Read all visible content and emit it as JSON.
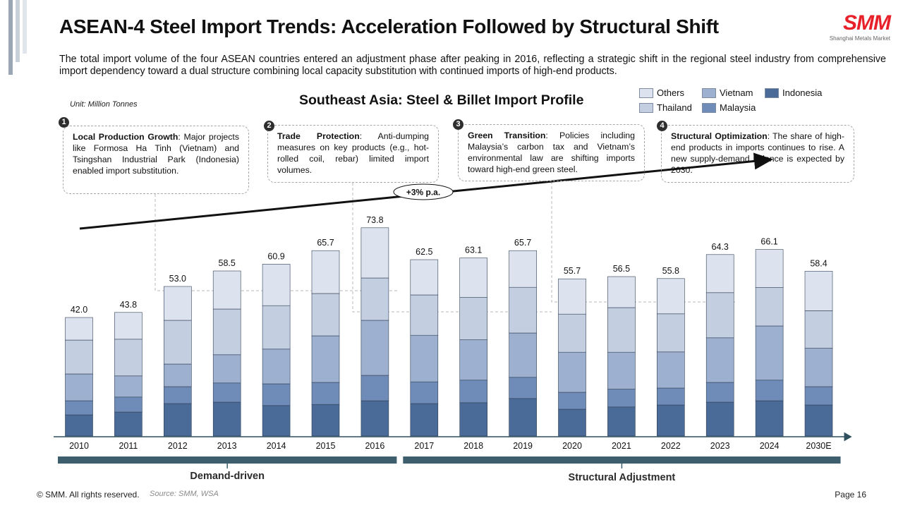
{
  "slide": {
    "title": "ASEAN-4 Steel Import Trends: Acceleration Followed by Structural Shift",
    "subtitle": "The total import volume of the four ASEAN countries entered an adjustment phase after peaking in 2016, reflecting a strategic shift in the regional steel industry from comprehensive import dependency toward a dual structure combining local capacity substitution with continued imports of high-end products.",
    "logo_text": "SMM",
    "logo_subtext": "Shanghai Metals Market",
    "footer_copyright": "© SMM. All rights reserved.",
    "footer_source": "Source: SMM, WSA",
    "page_number": "Page 16"
  },
  "callouts": [
    {
      "number": "1",
      "heading": "Local Production Growth",
      "text": ": Major projects like Formosa Ha Tinh (Vietnam) and Tsingshan Industrial Park (Indonesia) enabled import substitution."
    },
    {
      "number": "2",
      "heading": "Trade Protection",
      "text": ": Anti-dumping measures on key products (e.g., hot-rolled coil, rebar) limited import volumes."
    },
    {
      "number": "3",
      "heading": "Green Transition",
      "text": ": Policies including Malaysia’s carbon tax and Vietnam’s environmental law are shifting imports toward high-end green steel."
    },
    {
      "number": "4",
      "heading": "Structural Optimization",
      "text": ": The share of high-end products in imports continues to rise. A new supply-demand balance is expected by 2030."
    }
  ],
  "colors": {
    "Others": "#dde3ee",
    "Thailand": "#c3cee0",
    "Vietnam": "#9eb0cf",
    "Malaysia": "#6f8cb8",
    "Indonesia": "#4a6a98",
    "phase_bar": "#3c5e6d",
    "trend_line": "#111111"
  },
  "chart_data": {
    "type": "bar",
    "stacked": true,
    "title": "Southeast Asia: Steel & Billet Import Profile",
    "unit_label": "Unit: Million Tonnes",
    "categories": [
      "2010",
      "2011",
      "2012",
      "2013",
      "2014",
      "2015",
      "2016",
      "2017",
      "2018",
      "2019",
      "2020",
      "2021",
      "2022",
      "2023",
      "2024",
      "2030E"
    ],
    "totals": [
      42.0,
      43.8,
      53.0,
      58.5,
      60.9,
      65.7,
      73.8,
      62.5,
      63.1,
      65.7,
      55.7,
      56.5,
      55.8,
      64.3,
      66.1,
      58.4
    ],
    "total_labels": [
      "42.0",
      "43.8",
      "53.0",
      "58.5",
      "60.9",
      "65.7",
      "73.8",
      "62.5",
      "63.1",
      "65.7",
      "55.7",
      "56.5",
      "55.8",
      "64.3",
      "66.1",
      "58.4"
    ],
    "series": [
      {
        "name": "Indonesia",
        "values": [
          7.5,
          8.5,
          11.5,
          12.0,
          10.8,
          11.2,
          12.5,
          11.5,
          11.8,
          13.3,
          9.5,
          10.3,
          11.0,
          12.0,
          12.5,
          11.0
        ]
      },
      {
        "name": "Malaysia",
        "values": [
          5.0,
          5.3,
          6.0,
          6.8,
          7.7,
          7.8,
          9.0,
          7.7,
          8.0,
          7.5,
          6.0,
          6.3,
          6.0,
          7.0,
          7.3,
          6.5
        ]
      },
      {
        "name": "Vietnam",
        "values": [
          9.5,
          7.5,
          8.0,
          10.0,
          12.3,
          16.5,
          19.5,
          16.5,
          14.3,
          15.7,
          14.2,
          13.1,
          12.8,
          15.8,
          19.2,
          13.6
        ]
      },
      {
        "name": "Thailand",
        "values": [
          12.0,
          13.0,
          15.5,
          16.2,
          15.4,
          15.0,
          15.0,
          14.3,
          15.0,
          16.2,
          13.5,
          15.8,
          13.5,
          16.0,
          13.6,
          13.3
        ]
      },
      {
        "name": "Others",
        "values": [
          8.0,
          9.5,
          12.0,
          13.5,
          14.7,
          15.2,
          17.8,
          12.5,
          14.0,
          13.0,
          12.5,
          11.0,
          12.5,
          13.5,
          13.5,
          14.0
        ]
      }
    ],
    "ylim": [
      0,
      78
    ],
    "legend": {
      "position": "top-right",
      "entries": [
        "Others",
        "Vietnam",
        "Indonesia",
        "Thailand",
        "Malaysia"
      ]
    },
    "trend_annotation": "+3% p.a.",
    "phases": [
      {
        "label": "Demand-driven",
        "start": "2010",
        "end": "2016"
      },
      {
        "label": "Structural Adjustment",
        "start": "2017",
        "end": "2030E"
      }
    ]
  }
}
